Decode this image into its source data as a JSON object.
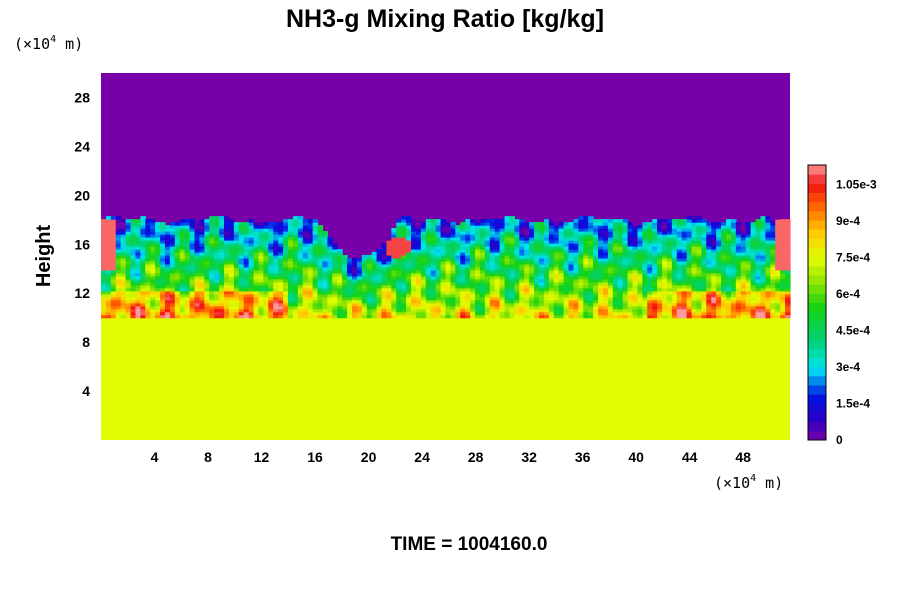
{
  "chart_data": {
    "type": "heatmap",
    "title": "NH3-g Mixing Ratio [kg/kg]",
    "ylabel": "Height",
    "x_units": {
      "pre": "(×10",
      "sup": "4",
      "post": " m)"
    },
    "y_units": {
      "pre": "(×10",
      "sup": "4",
      "post": " m)"
    },
    "x_ticks": [
      4,
      8,
      12,
      16,
      20,
      24,
      28,
      32,
      36,
      40,
      44,
      48
    ],
    "y_ticks": [
      4,
      8,
      12,
      16,
      20,
      24,
      28
    ],
    "xlim": [
      0,
      51.5
    ],
    "ylim": [
      0,
      30
    ],
    "colorbar": {
      "range": [
        0,
        0.00113
      ],
      "ticks": [
        {
          "value": 0,
          "label": "0"
        },
        {
          "value": 0.00015,
          "label": "1.5e-4"
        },
        {
          "value": 0.0003,
          "label": "3e-4"
        },
        {
          "value": 0.00045,
          "label": "4.5e-4"
        },
        {
          "value": 0.0006,
          "label": "6e-4"
        },
        {
          "value": 0.00075,
          "label": "7.5e-4"
        },
        {
          "value": 0.0009,
          "label": "9e-4"
        },
        {
          "value": 0.00105,
          "label": "1.05e-3"
        }
      ]
    },
    "field_description": {
      "lower_layer": {
        "height_top": 10.5,
        "value": 0.00075
      },
      "upper_layer": {
        "height_bottom": 18,
        "value": 0
      },
      "mixing_layer": {
        "height_range": [
          10.5,
          18
        ],
        "value_range": [
          0.0002,
          0.00113
        ]
      }
    },
    "footer": "TIME = 1004160.0"
  },
  "colors": {
    "zero": "#7800a8",
    "lower": "#e0ff00",
    "max": "#ff9a9a"
  }
}
